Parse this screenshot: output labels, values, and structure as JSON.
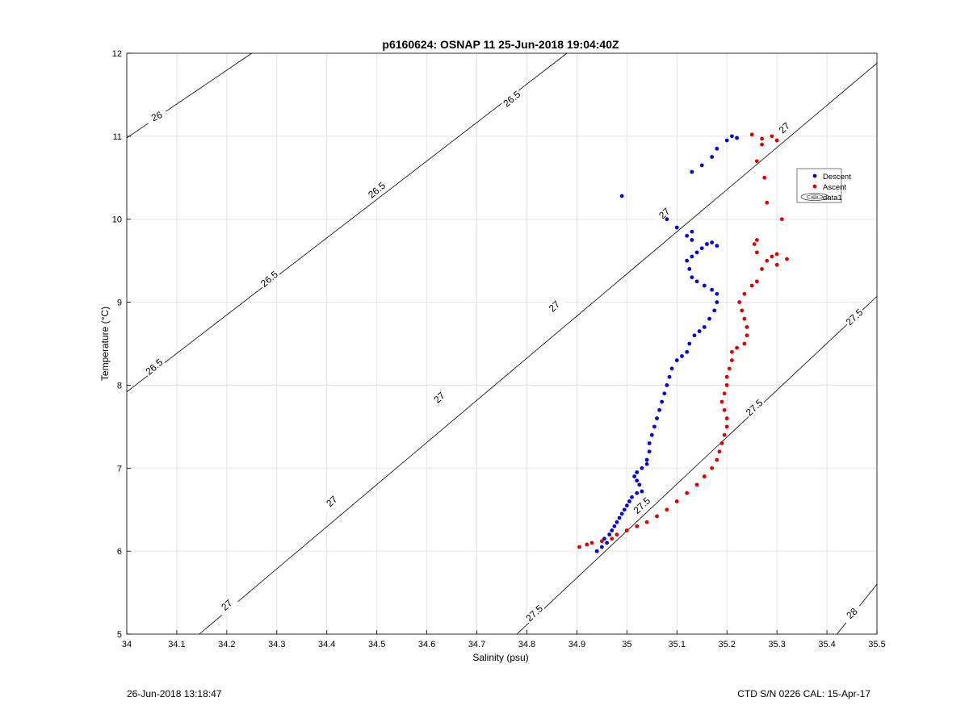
{
  "chart_data": {
    "type": "scatter",
    "title": "p6160624: OSNAP 11 25-Jun-2018 19:04:40Z",
    "xlabel": "Salinity (psu)",
    "ylabel": "Temperature (°C)",
    "xlim": [
      34,
      35.5
    ],
    "ylim": [
      5,
      12
    ],
    "xticks": [
      34,
      34.1,
      34.2,
      34.3,
      34.4,
      34.5,
      34.6,
      34.7,
      34.8,
      34.9,
      35,
      35.1,
      35.2,
      35.3,
      35.4,
      35.5
    ],
    "xtick_labels": [
      "34",
      "34.1",
      "34.2",
      "34.3",
      "34.4",
      "34.5",
      "34.6",
      "34.7",
      "34.8",
      "34.9",
      "35",
      "35.1",
      "35.2",
      "35.3",
      "35.4",
      "35.5"
    ],
    "yticks": [
      5,
      6,
      7,
      8,
      9,
      10,
      11,
      12
    ],
    "ytick_labels": [
      "5",
      "6",
      "7",
      "8",
      "9",
      "10",
      "11",
      "12"
    ],
    "grid": true,
    "legend_position": "top-right",
    "legend": [
      "Descent",
      "Ascent",
      "data1"
    ],
    "series": [
      {
        "name": "Descent",
        "color": "#0000e0",
        "points": [
          [
            34.94,
            6.0
          ],
          [
            34.95,
            6.05
          ],
          [
            34.96,
            6.1
          ],
          [
            34.955,
            6.15
          ],
          [
            34.965,
            6.2
          ],
          [
            34.97,
            6.25
          ],
          [
            34.975,
            6.3
          ],
          [
            34.98,
            6.35
          ],
          [
            34.985,
            6.4
          ],
          [
            34.99,
            6.45
          ],
          [
            34.995,
            6.5
          ],
          [
            35.0,
            6.55
          ],
          [
            35.005,
            6.6
          ],
          [
            35.01,
            6.65
          ],
          [
            35.02,
            6.7
          ],
          [
            35.03,
            6.72
          ],
          [
            35.025,
            6.8
          ],
          [
            35.02,
            6.85
          ],
          [
            35.015,
            6.9
          ],
          [
            35.02,
            6.95
          ],
          [
            35.03,
            7.0
          ],
          [
            35.04,
            7.05
          ],
          [
            35.04,
            7.1
          ],
          [
            35.045,
            7.2
          ],
          [
            35.045,
            7.3
          ],
          [
            35.05,
            7.4
          ],
          [
            35.055,
            7.5
          ],
          [
            35.06,
            7.6
          ],
          [
            35.065,
            7.7
          ],
          [
            35.07,
            7.8
          ],
          [
            35.075,
            7.9
          ],
          [
            35.08,
            8.0
          ],
          [
            35.085,
            8.1
          ],
          [
            35.09,
            8.2
          ],
          [
            35.1,
            8.3
          ],
          [
            35.11,
            8.35
          ],
          [
            35.12,
            8.4
          ],
          [
            35.125,
            8.5
          ],
          [
            35.135,
            8.6
          ],
          [
            35.145,
            8.65
          ],
          [
            35.155,
            8.7
          ],
          [
            35.165,
            8.8
          ],
          [
            35.175,
            8.9
          ],
          [
            35.18,
            9.0
          ],
          [
            35.18,
            9.1
          ],
          [
            35.17,
            9.15
          ],
          [
            35.155,
            9.2
          ],
          [
            35.14,
            9.25
          ],
          [
            35.13,
            9.3
          ],
          [
            35.125,
            9.4
          ],
          [
            35.12,
            9.5
          ],
          [
            35.13,
            9.55
          ],
          [
            35.14,
            9.6
          ],
          [
            35.15,
            9.65
          ],
          [
            35.16,
            9.7
          ],
          [
            35.18,
            9.68
          ],
          [
            35.17,
            9.72
          ],
          [
            35.13,
            9.75
          ],
          [
            35.12,
            9.8
          ],
          [
            35.13,
            9.85
          ],
          [
            35.1,
            9.9
          ],
          [
            35.08,
            10.0
          ],
          [
            34.99,
            10.28
          ],
          [
            35.13,
            10.57
          ],
          [
            35.15,
            10.65
          ],
          [
            35.17,
            10.75
          ],
          [
            35.18,
            10.85
          ],
          [
            35.2,
            10.95
          ],
          [
            35.21,
            11.0
          ],
          [
            35.22,
            10.98
          ]
        ]
      },
      {
        "name": "Ascent",
        "color": "#e00000",
        "points": [
          [
            34.905,
            6.05
          ],
          [
            34.92,
            6.08
          ],
          [
            34.93,
            6.1
          ],
          [
            34.95,
            6.12
          ],
          [
            34.97,
            6.15
          ],
          [
            34.98,
            6.2
          ],
          [
            35.0,
            6.25
          ],
          [
            35.02,
            6.3
          ],
          [
            35.04,
            6.35
          ],
          [
            35.06,
            6.42
          ],
          [
            35.08,
            6.5
          ],
          [
            35.1,
            6.6
          ],
          [
            35.12,
            6.7
          ],
          [
            35.14,
            6.8
          ],
          [
            35.155,
            6.9
          ],
          [
            35.17,
            7.0
          ],
          [
            35.18,
            7.1
          ],
          [
            35.185,
            7.2
          ],
          [
            35.19,
            7.3
          ],
          [
            35.195,
            7.4
          ],
          [
            35.2,
            7.5
          ],
          [
            35.2,
            7.6
          ],
          [
            35.195,
            7.7
          ],
          [
            35.19,
            7.8
          ],
          [
            35.195,
            7.9
          ],
          [
            35.2,
            8.0
          ],
          [
            35.2,
            8.1
          ],
          [
            35.205,
            8.2
          ],
          [
            35.21,
            8.3
          ],
          [
            35.21,
            8.4
          ],
          [
            35.22,
            8.45
          ],
          [
            35.235,
            8.5
          ],
          [
            35.24,
            8.6
          ],
          [
            35.24,
            8.7
          ],
          [
            35.235,
            8.8
          ],
          [
            35.23,
            8.9
          ],
          [
            35.225,
            9.0
          ],
          [
            35.235,
            9.1
          ],
          [
            35.25,
            9.2
          ],
          [
            35.26,
            9.25
          ],
          [
            35.27,
            9.4
          ],
          [
            35.28,
            9.5
          ],
          [
            35.29,
            9.55
          ],
          [
            35.3,
            9.58
          ],
          [
            35.32,
            9.52
          ],
          [
            35.3,
            9.45
          ],
          [
            35.26,
            9.6
          ],
          [
            35.255,
            9.7
          ],
          [
            35.26,
            9.75
          ],
          [
            35.31,
            10.0
          ],
          [
            35.28,
            10.2
          ],
          [
            35.275,
            10.5
          ],
          [
            35.26,
            10.7
          ],
          [
            35.27,
            10.9
          ],
          [
            35.3,
            10.95
          ],
          [
            35.29,
            11.0
          ],
          [
            35.25,
            11.02
          ],
          [
            35.27,
            10.97
          ]
        ]
      }
    ],
    "isopycnals": [
      {
        "sigma": 26,
        "labels": [
          "26"
        ]
      },
      {
        "sigma": 26.5,
        "labels": [
          "26.5",
          "26.5",
          "26.5",
          "26.5"
        ]
      },
      {
        "sigma": 27,
        "labels": [
          "27",
          "27",
          "27",
          "27",
          "27",
          "27"
        ]
      },
      {
        "sigma": 27.5,
        "labels": [
          "27.5",
          "27.5",
          "27.5",
          "27.5"
        ]
      },
      {
        "sigma": 28,
        "labels": [
          "28"
        ]
      }
    ]
  },
  "footer": {
    "timestamp": "26-Jun-2018 13:18:47",
    "instrument": "CTD S/N 0226  CAL: 15-Apr-17"
  }
}
